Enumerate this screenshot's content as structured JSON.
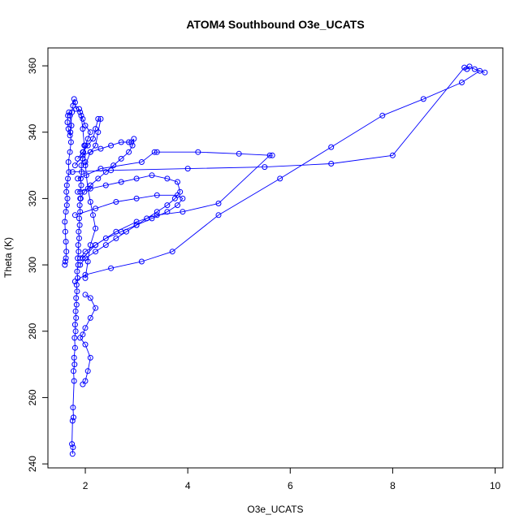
{
  "chart_data": {
    "type": "scatter",
    "title": "ATOM4 Southbound O3e_UCATS",
    "xlabel": "O3e_UCATS",
    "ylabel": "Theta (K)",
    "xlim": [
      1.27,
      10.15
    ],
    "ylim": [
      238.8,
      365.4
    ],
    "xticks": [
      2,
      4,
      6,
      8,
      10
    ],
    "yticks": [
      240,
      260,
      280,
      300,
      320,
      340,
      360
    ],
    "grid": false,
    "legend": "none",
    "series_color": "#0000ff",
    "marker": "open-circle",
    "connected": true,
    "series": [
      {
        "x": [
          1.75,
          1.76,
          1.74,
          1.75,
          1.77,
          1.76,
          1.78,
          1.77,
          1.79,
          1.78,
          1.8,
          1.79,
          1.81,
          1.8,
          1.82,
          1.81,
          1.83,
          1.82,
          1.84,
          1.83,
          1.85,
          1.84,
          1.86,
          1.85,
          1.87,
          1.86,
          1.88,
          1.87,
          1.89,
          1.88,
          1.9,
          1.89,
          1.91,
          1.9,
          1.92,
          1.91,
          1.93,
          1.92,
          1.95,
          1.96,
          2.0,
          2.05,
          2.1,
          2.0,
          1.95,
          1.9,
          1.88,
          1.92,
          1.95,
          1.98,
          2.0,
          2.02,
          2.05,
          2.1,
          2.15,
          2.2,
          2.1,
          2.05,
          2.0
        ],
        "y": [
          243,
          245,
          246,
          253,
          254,
          257,
          265,
          268,
          270,
          272,
          275,
          278,
          280,
          282,
          284,
          286,
          288,
          290,
          292,
          294,
          296,
          298,
          300,
          302,
          304,
          306,
          308,
          310,
          312,
          314,
          316,
          318,
          320,
          322,
          324,
          326,
          328,
          330,
          332,
          334,
          336,
          338,
          340,
          342,
          344,
          346,
          347,
          345,
          341,
          336,
          331,
          327,
          323,
          319,
          315,
          311,
          306,
          301,
          296
        ]
      },
      {
        "x": [
          1.6,
          1.61,
          1.62,
          1.63,
          1.62,
          1.61,
          1.6,
          1.62,
          1.64,
          1.65,
          1.63,
          1.64,
          1.66,
          1.68,
          1.67,
          1.7,
          1.72,
          1.71,
          1.73,
          1.7,
          1.68,
          1.66,
          1.65,
          1.67,
          1.7,
          1.74,
          1.76,
          1.78,
          1.8,
          1.82
        ],
        "y": [
          300,
          301,
          302,
          304,
          307,
          310,
          313,
          316,
          318,
          320,
          322,
          324,
          326,
          328,
          331,
          334,
          337,
          340,
          342,
          345,
          346,
          345,
          343,
          341,
          339,
          346,
          348,
          350,
          349,
          347
        ]
      },
      {
        "x": [
          1.8,
          1.95,
          2.1,
          2.3,
          2.5,
          2.7,
          2.85,
          2.9,
          2.95,
          2.92,
          2.85,
          2.7,
          2.55,
          2.4,
          2.25,
          2.1,
          1.98,
          1.9
        ],
        "y": [
          330,
          333,
          334,
          335,
          336,
          337,
          337,
          337,
          338,
          336,
          334,
          332,
          330,
          328,
          326,
          324,
          322,
          320
        ]
      },
      {
        "x": [
          1.85,
          2.1,
          2.4,
          2.7,
          3.0,
          3.3,
          3.6,
          3.8,
          3.85,
          3.75,
          3.6,
          3.4,
          3.2,
          3.0,
          2.8,
          2.6,
          2.4,
          2.2,
          2.0,
          1.9
        ],
        "y": [
          322,
          323,
          324,
          325,
          326,
          327,
          326,
          325,
          322,
          320,
          318,
          316,
          314,
          312,
          310,
          308,
          306,
          304,
          302,
          300
        ]
      },
      {
        "x": [
          1.8,
          2.2,
          2.6,
          3.0,
          3.4,
          3.8,
          3.9,
          3.8,
          3.6,
          3.3,
          3.0,
          2.7,
          2.4,
          2.2,
          2.0,
          1.9
        ],
        "y": [
          315,
          317,
          319,
          320,
          321,
          321,
          320,
          318,
          316,
          314,
          312,
          310,
          308,
          306,
          304,
          302
        ]
      },
      {
        "x": [
          1.85,
          2.3,
          3.1,
          3.35,
          3.4,
          4.2,
          5.0,
          5.65,
          5.6,
          4.6,
          3.9,
          3.4,
          3.0,
          2.6,
          2.2,
          1.95
        ],
        "y": [
          326,
          329,
          331,
          334,
          334,
          334,
          333.5,
          333,
          333,
          318.5,
          316,
          315,
          313,
          310,
          306,
          302
        ]
      },
      {
        "x": [
          1.75,
          2.5,
          4.0,
          5.5,
          6.8,
          8.0,
          9.4,
          9.45,
          9.5,
          9.6,
          9.8,
          9.7,
          9.35,
          8.6,
          7.8,
          6.8,
          5.8,
          4.6,
          3.7,
          3.1,
          2.5,
          2.0,
          1.8
        ],
        "y": [
          328,
          328.5,
          329,
          329.5,
          330.5,
          333,
          359.5,
          359,
          359.8,
          359,
          358,
          358.5,
          355,
          350,
          345,
          335.5,
          326,
          315,
          304,
          301,
          299,
          297,
          295
        ]
      },
      {
        "x": [
          2.0,
          2.1,
          2.2,
          2.1,
          2.0,
          1.95,
          1.9,
          2.0,
          2.1,
          2.05,
          2.0,
          1.95
        ],
        "y": [
          291,
          290,
          287,
          284,
          281,
          279,
          278,
          276,
          272,
          268,
          265,
          264
        ]
      },
      {
        "x": [
          1.85,
          1.95,
          2.05,
          2.15,
          2.2,
          2.25,
          2.3,
          2.25,
          2.2,
          2.1,
          2.0
        ],
        "y": [
          332,
          334,
          336,
          338,
          341,
          344,
          344,
          340,
          336,
          334,
          330
        ]
      }
    ]
  }
}
